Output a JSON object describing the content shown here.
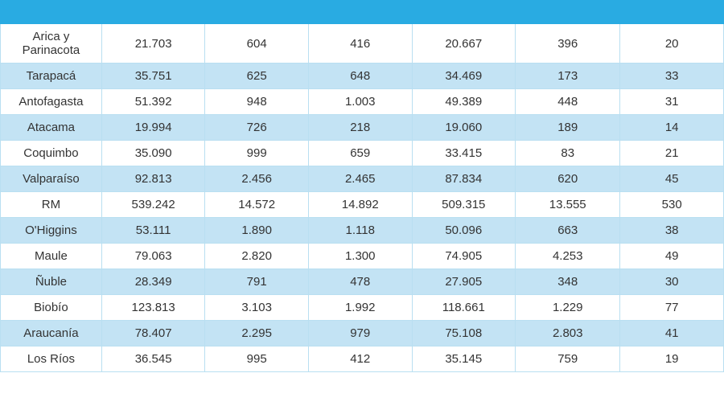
{
  "table": {
    "header_bg": "#29abe2",
    "header_border": "#29abe2",
    "row_odd_bg": "#ffffff",
    "row_even_bg": "#c3e3f4",
    "cell_border": "#b9dff1",
    "text_color": "#333333",
    "fontsize": 15,
    "column_widths": [
      "14%",
      "14.3%",
      "14.3%",
      "14.3%",
      "14.3%",
      "14.5%",
      "14.3%"
    ],
    "num_columns": 7,
    "rows": [
      [
        "Arica y Parinacota",
        "21.703",
        "604",
        "416",
        "20.667",
        "396",
        "20"
      ],
      [
        "Tarapacá",
        "35.751",
        "625",
        "648",
        "34.469",
        "173",
        "33"
      ],
      [
        "Antofagasta",
        "51.392",
        "948",
        "1.003",
        "49.389",
        "448",
        "31"
      ],
      [
        "Atacama",
        "19.994",
        "726",
        "218",
        "19.060",
        "189",
        "14"
      ],
      [
        "Coquimbo",
        "35.090",
        "999",
        "659",
        "33.415",
        "83",
        "21"
      ],
      [
        "Valparaíso",
        "92.813",
        "2.456",
        "2.465",
        "87.834",
        "620",
        "45"
      ],
      [
        "RM",
        "539.242",
        "14.572",
        "14.892",
        "509.315",
        "13.555",
        "530"
      ],
      [
        "O'Higgins",
        "53.111",
        "1.890",
        "1.118",
        "50.096",
        "663",
        "38"
      ],
      [
        "Maule",
        "79.063",
        "2.820",
        "1.300",
        "74.905",
        "4.253",
        "49"
      ],
      [
        "Ñuble",
        "28.349",
        "791",
        "478",
        "27.905",
        "348",
        "30"
      ],
      [
        "Biobío",
        "123.813",
        "3.103",
        "1.992",
        "118.661",
        "1.229",
        "77"
      ],
      [
        "Araucanía",
        "78.407",
        "2.295",
        "979",
        "75.108",
        "2.803",
        "41"
      ],
      [
        "Los Ríos",
        "36.545",
        "995",
        "412",
        "35.145",
        "759",
        "19"
      ]
    ]
  }
}
